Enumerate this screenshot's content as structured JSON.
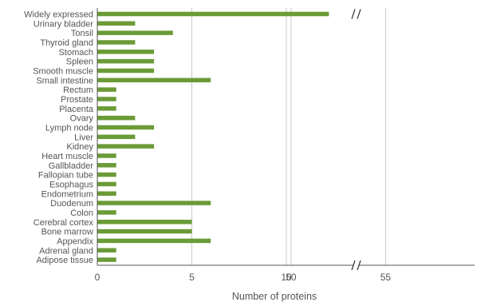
{
  "chart_data": {
    "type": "bar",
    "orientation": "horizontal",
    "categories": [
      "Widely expressed",
      "Urinary bladder",
      "Tonsil",
      "Thyroid gland",
      "Stomach",
      "Spleen",
      "Smooth muscle",
      "Small intestine",
      "Rectum",
      "Prostate",
      "Placenta",
      "Ovary",
      "Lymph node",
      "Liver",
      "Kidney",
      "Heart muscle",
      "Gallbladder",
      "Fallopian tube",
      "Esophagus",
      "Endometrium",
      "Duodenum",
      "Colon",
      "Cerebral cortex",
      "Bone marrow",
      "Appendix",
      "Adrenal gland",
      "Adipose tissue"
    ],
    "values": [
      52,
      2,
      4,
      2,
      3,
      3,
      3,
      6,
      1,
      1,
      1,
      2,
      3,
      2,
      3,
      1,
      1,
      1,
      1,
      1,
      6,
      1,
      5,
      5,
      6,
      1,
      1
    ],
    "xlabel": "Number of proteins",
    "ylabel": "",
    "title": "",
    "x_ticks": [
      "0",
      "5",
      "10",
      "50",
      "55"
    ],
    "axis_break": {
      "from": 10,
      "to": 50
    },
    "xlim": [
      0,
      55
    ],
    "grid": "vertical",
    "color": "#6b9b37"
  }
}
